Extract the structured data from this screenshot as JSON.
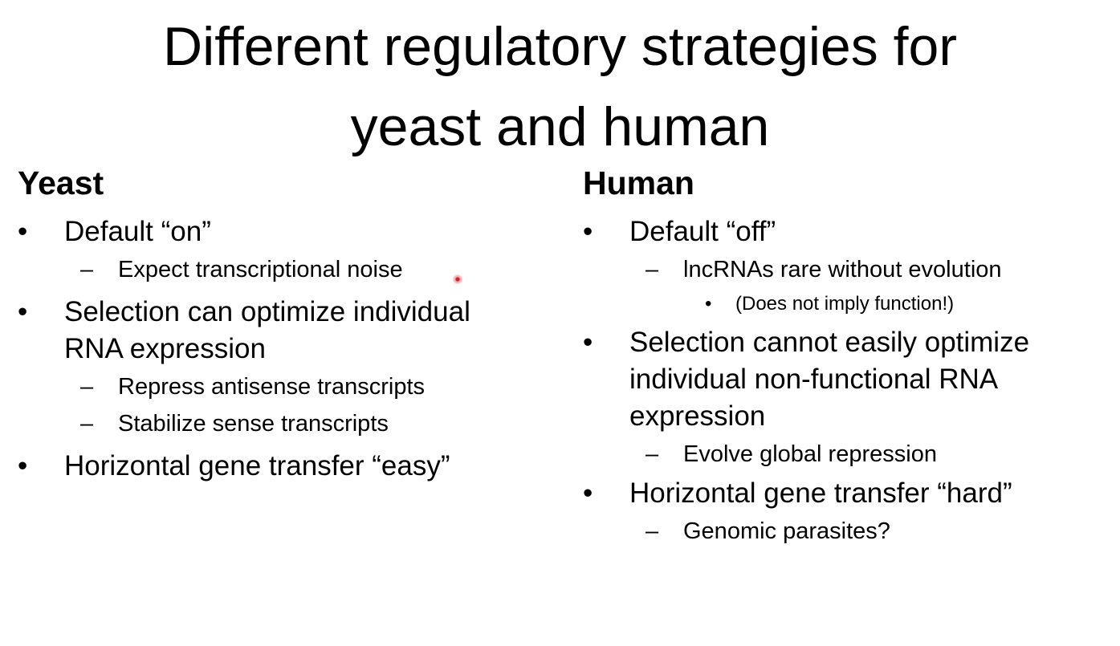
{
  "slide": {
    "title_line1": "Different regulatory strategies for",
    "title_line2": "yeast and human"
  },
  "left": {
    "heading": "Yeast",
    "bullets": [
      {
        "text": "Default “on”",
        "subs": [
          "Expect transcriptional noise"
        ]
      },
      {
        "text_line1": "Selection can optimize individual",
        "text_line2": "RNA expression",
        "subs": [
          "Repress antisense transcripts",
          "Stabilize sense transcripts"
        ]
      },
      {
        "text": "Horizontal gene transfer “easy”"
      }
    ]
  },
  "right": {
    "heading": "Human",
    "bullets": [
      {
        "text": "Default “off”",
        "subs": [
          "lncRNAs rare without evolution"
        ],
        "subsubs": [
          "(Does not imply function!)"
        ]
      },
      {
        "text_line1": "Selection cannot easily optimize",
        "text_line2": "individual non-functional RNA",
        "text_line3": "expression",
        "subs": [
          "Evolve global repression"
        ]
      },
      {
        "text": "Horizontal gene transfer “hard”",
        "subs": [
          "Genomic parasites?"
        ]
      }
    ]
  },
  "glyphs": {
    "bullet": "•",
    "dash": "–"
  }
}
